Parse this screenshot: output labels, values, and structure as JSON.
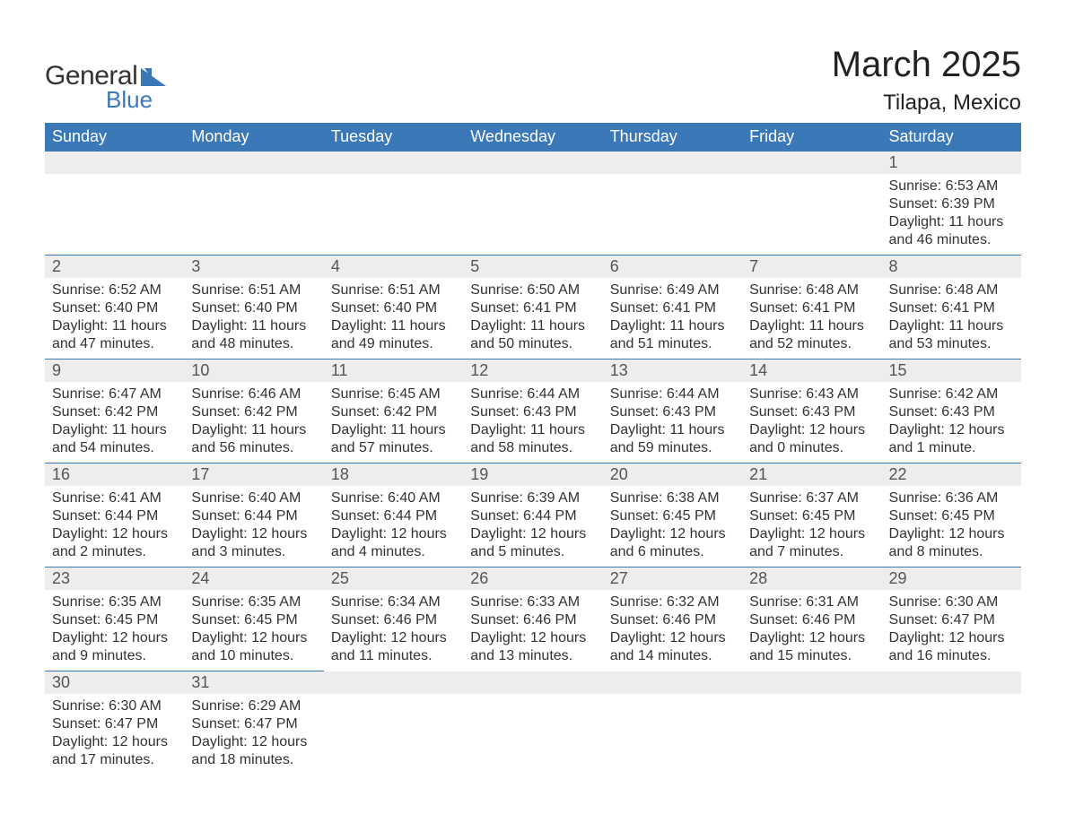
{
  "logo": {
    "text_general": "General",
    "text_blue": "Blue",
    "shape_color": "#3b78b8",
    "general_color": "#333333"
  },
  "title": {
    "month": "March 2025",
    "location": "Tilapa, Mexico",
    "month_fontsize": 40,
    "location_fontsize": 24
  },
  "colors": {
    "header_bg": "#3b78b8",
    "header_text": "#ffffff",
    "daynum_bg": "#ededed",
    "daynum_text": "#555555",
    "body_text": "#333333",
    "row_border": "#3b78b8",
    "background": "#ffffff"
  },
  "typography": {
    "header_fontsize": 18,
    "daynum_fontsize": 18,
    "body_fontsize": 16,
    "font_family": "Arial"
  },
  "layout": {
    "columns": 7,
    "rows": 6,
    "first_day_column": 6
  },
  "day_headers": [
    "Sunday",
    "Monday",
    "Tuesday",
    "Wednesday",
    "Thursday",
    "Friday",
    "Saturday"
  ],
  "days": [
    {
      "n": "1",
      "sunrise": "Sunrise: 6:53 AM",
      "sunset": "Sunset: 6:39 PM",
      "daylight": "Daylight: 11 hours and 46 minutes."
    },
    {
      "n": "2",
      "sunrise": "Sunrise: 6:52 AM",
      "sunset": "Sunset: 6:40 PM",
      "daylight": "Daylight: 11 hours and 47 minutes."
    },
    {
      "n": "3",
      "sunrise": "Sunrise: 6:51 AM",
      "sunset": "Sunset: 6:40 PM",
      "daylight": "Daylight: 11 hours and 48 minutes."
    },
    {
      "n": "4",
      "sunrise": "Sunrise: 6:51 AM",
      "sunset": "Sunset: 6:40 PM",
      "daylight": "Daylight: 11 hours and 49 minutes."
    },
    {
      "n": "5",
      "sunrise": "Sunrise: 6:50 AM",
      "sunset": "Sunset: 6:41 PM",
      "daylight": "Daylight: 11 hours and 50 minutes."
    },
    {
      "n": "6",
      "sunrise": "Sunrise: 6:49 AM",
      "sunset": "Sunset: 6:41 PM",
      "daylight": "Daylight: 11 hours and 51 minutes."
    },
    {
      "n": "7",
      "sunrise": "Sunrise: 6:48 AM",
      "sunset": "Sunset: 6:41 PM",
      "daylight": "Daylight: 11 hours and 52 minutes."
    },
    {
      "n": "8",
      "sunrise": "Sunrise: 6:48 AM",
      "sunset": "Sunset: 6:41 PM",
      "daylight": "Daylight: 11 hours and 53 minutes."
    },
    {
      "n": "9",
      "sunrise": "Sunrise: 6:47 AM",
      "sunset": "Sunset: 6:42 PM",
      "daylight": "Daylight: 11 hours and 54 minutes."
    },
    {
      "n": "10",
      "sunrise": "Sunrise: 6:46 AM",
      "sunset": "Sunset: 6:42 PM",
      "daylight": "Daylight: 11 hours and 56 minutes."
    },
    {
      "n": "11",
      "sunrise": "Sunrise: 6:45 AM",
      "sunset": "Sunset: 6:42 PM",
      "daylight": "Daylight: 11 hours and 57 minutes."
    },
    {
      "n": "12",
      "sunrise": "Sunrise: 6:44 AM",
      "sunset": "Sunset: 6:43 PM",
      "daylight": "Daylight: 11 hours and 58 minutes."
    },
    {
      "n": "13",
      "sunrise": "Sunrise: 6:44 AM",
      "sunset": "Sunset: 6:43 PM",
      "daylight": "Daylight: 11 hours and 59 minutes."
    },
    {
      "n": "14",
      "sunrise": "Sunrise: 6:43 AM",
      "sunset": "Sunset: 6:43 PM",
      "daylight": "Daylight: 12 hours and 0 minutes."
    },
    {
      "n": "15",
      "sunrise": "Sunrise: 6:42 AM",
      "sunset": "Sunset: 6:43 PM",
      "daylight": "Daylight: 12 hours and 1 minute."
    },
    {
      "n": "16",
      "sunrise": "Sunrise: 6:41 AM",
      "sunset": "Sunset: 6:44 PM",
      "daylight": "Daylight: 12 hours and 2 minutes."
    },
    {
      "n": "17",
      "sunrise": "Sunrise: 6:40 AM",
      "sunset": "Sunset: 6:44 PM",
      "daylight": "Daylight: 12 hours and 3 minutes."
    },
    {
      "n": "18",
      "sunrise": "Sunrise: 6:40 AM",
      "sunset": "Sunset: 6:44 PM",
      "daylight": "Daylight: 12 hours and 4 minutes."
    },
    {
      "n": "19",
      "sunrise": "Sunrise: 6:39 AM",
      "sunset": "Sunset: 6:44 PM",
      "daylight": "Daylight: 12 hours and 5 minutes."
    },
    {
      "n": "20",
      "sunrise": "Sunrise: 6:38 AM",
      "sunset": "Sunset: 6:45 PM",
      "daylight": "Daylight: 12 hours and 6 minutes."
    },
    {
      "n": "21",
      "sunrise": "Sunrise: 6:37 AM",
      "sunset": "Sunset: 6:45 PM",
      "daylight": "Daylight: 12 hours and 7 minutes."
    },
    {
      "n": "22",
      "sunrise": "Sunrise: 6:36 AM",
      "sunset": "Sunset: 6:45 PM",
      "daylight": "Daylight: 12 hours and 8 minutes."
    },
    {
      "n": "23",
      "sunrise": "Sunrise: 6:35 AM",
      "sunset": "Sunset: 6:45 PM",
      "daylight": "Daylight: 12 hours and 9 minutes."
    },
    {
      "n": "24",
      "sunrise": "Sunrise: 6:35 AM",
      "sunset": "Sunset: 6:45 PM",
      "daylight": "Daylight: 12 hours and 10 minutes."
    },
    {
      "n": "25",
      "sunrise": "Sunrise: 6:34 AM",
      "sunset": "Sunset: 6:46 PM",
      "daylight": "Daylight: 12 hours and 11 minutes."
    },
    {
      "n": "26",
      "sunrise": "Sunrise: 6:33 AM",
      "sunset": "Sunset: 6:46 PM",
      "daylight": "Daylight: 12 hours and 13 minutes."
    },
    {
      "n": "27",
      "sunrise": "Sunrise: 6:32 AM",
      "sunset": "Sunset: 6:46 PM",
      "daylight": "Daylight: 12 hours and 14 minutes."
    },
    {
      "n": "28",
      "sunrise": "Sunrise: 6:31 AM",
      "sunset": "Sunset: 6:46 PM",
      "daylight": "Daylight: 12 hours and 15 minutes."
    },
    {
      "n": "29",
      "sunrise": "Sunrise: 6:30 AM",
      "sunset": "Sunset: 6:47 PM",
      "daylight": "Daylight: 12 hours and 16 minutes."
    },
    {
      "n": "30",
      "sunrise": "Sunrise: 6:30 AM",
      "sunset": "Sunset: 6:47 PM",
      "daylight": "Daylight: 12 hours and 17 minutes."
    },
    {
      "n": "31",
      "sunrise": "Sunrise: 6:29 AM",
      "sunset": "Sunset: 6:47 PM",
      "daylight": "Daylight: 12 hours and 18 minutes."
    }
  ]
}
